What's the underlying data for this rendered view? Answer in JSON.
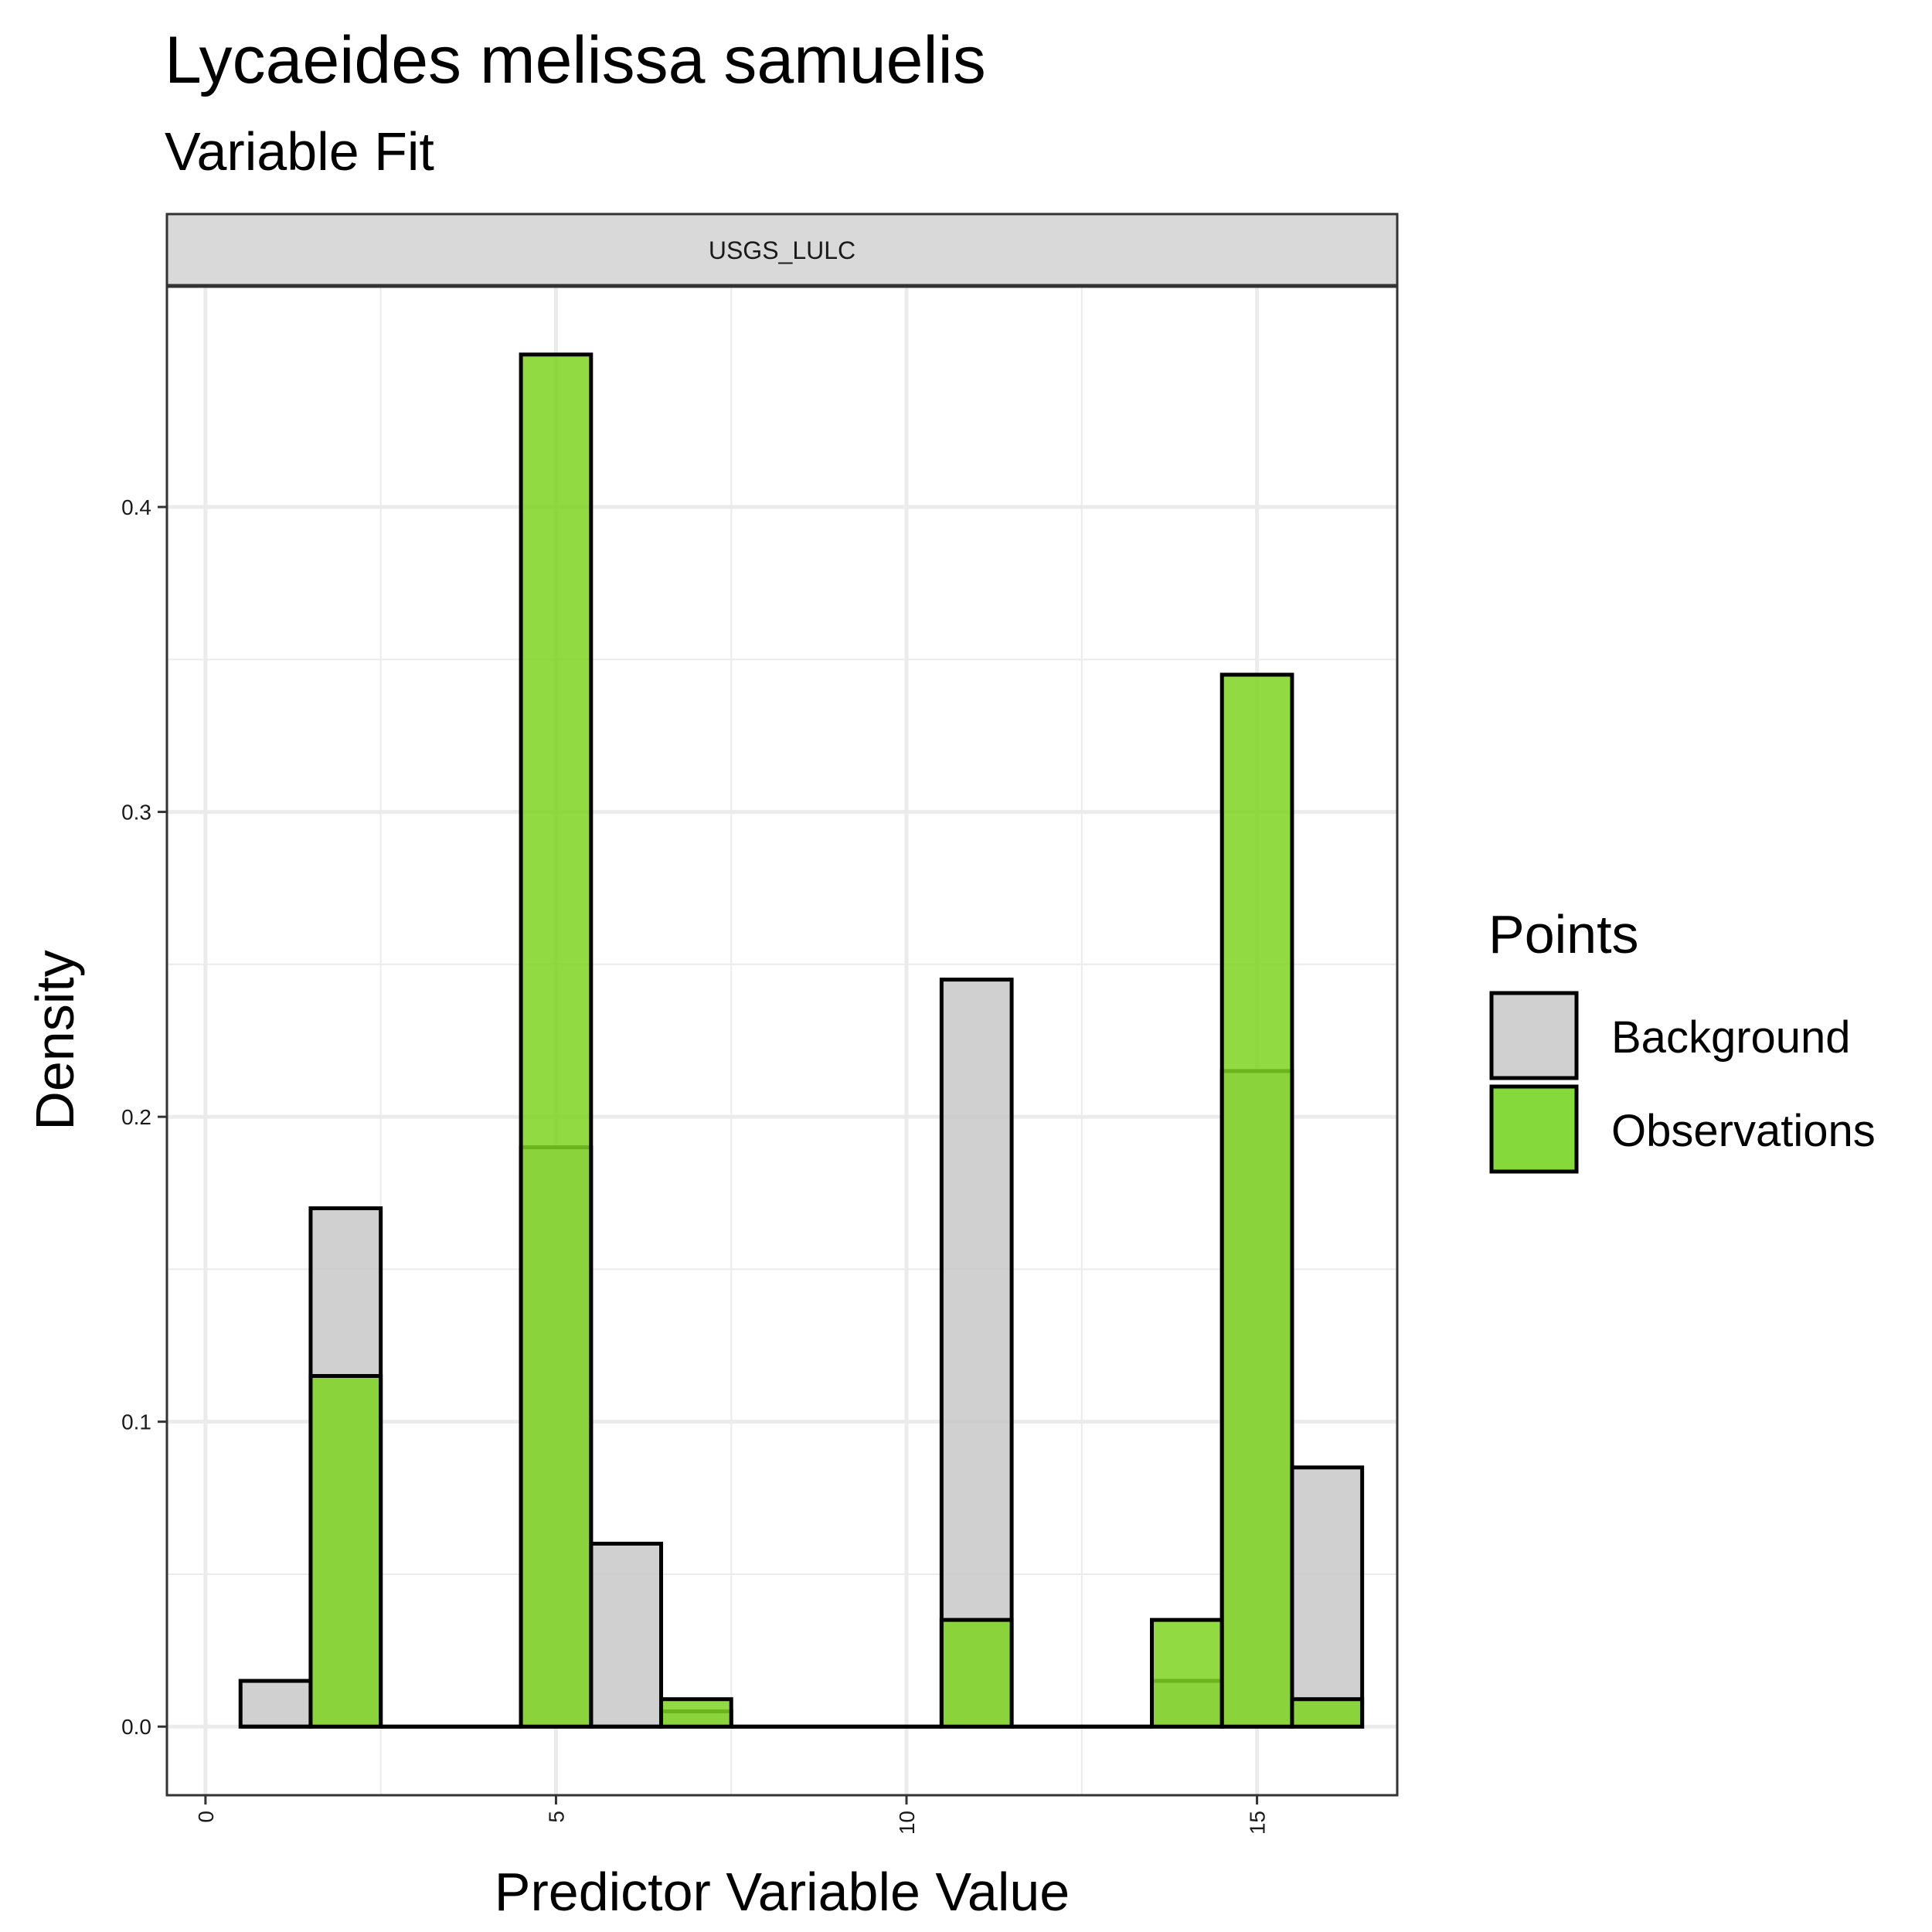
{
  "chart_data": {
    "type": "bar",
    "title": "Lycaeides melissa samuelis",
    "subtitle": "Variable Fit",
    "facet_label": "USGS_LULC",
    "xlabel": "Predictor Variable Value",
    "ylabel": "Density",
    "xlim": [
      -0.55,
      17.0
    ],
    "ylim": [
      -0.0225,
      0.4725
    ],
    "x_ticks": [
      "0",
      "5",
      "10",
      "15"
    ],
    "x_tick_values": [
      0,
      5,
      10,
      15
    ],
    "y_ticks": [
      "0.0",
      "0.1",
      "0.2",
      "0.3",
      "0.4"
    ],
    "y_tick_values": [
      0.0,
      0.1,
      0.2,
      0.3,
      0.4
    ],
    "grid": true,
    "legend_title": "Points",
    "legend_position": "right",
    "bin_width": 1,
    "series": [
      {
        "name": "Background",
        "color": "#C8C8C8",
        "x": [
          1,
          2,
          3,
          4,
          5,
          6,
          7,
          8,
          9,
          10,
          11,
          12,
          13,
          14,
          15,
          16
        ],
        "values": [
          0.015,
          0.17,
          0,
          0,
          0.19,
          0.06,
          0.005,
          0,
          0,
          0,
          0.245,
          0,
          0,
          0.015,
          0.215,
          0.085
        ]
      },
      {
        "name": "Observations",
        "color": "#7ED321",
        "x": [
          1,
          2,
          3,
          4,
          5,
          6,
          7,
          8,
          9,
          10,
          11,
          12,
          13,
          14,
          15,
          16
        ],
        "values": [
          0,
          0.115,
          0,
          0,
          0.45,
          0,
          0.009,
          0,
          0,
          0,
          0.035,
          0,
          0,
          0.035,
          0.345,
          0.009
        ]
      }
    ]
  }
}
